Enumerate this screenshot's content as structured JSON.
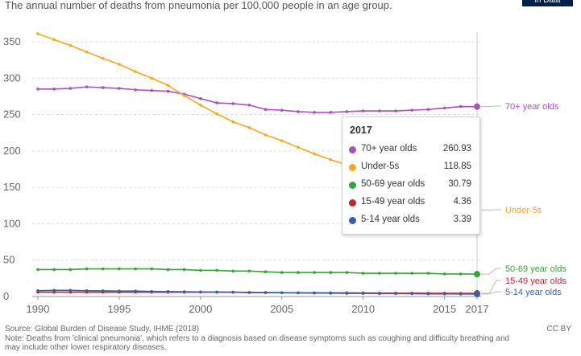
{
  "header": {
    "subtitle": "The annual number of deaths from pneumonia per 100,000 people in an age group.",
    "brand": "in Data"
  },
  "chart_data": {
    "type": "line",
    "subtitle": "The annual number of deaths from pneumonia per 100,000 people in an age group.",
    "xlim": [
      1990,
      2017
    ],
    "ylim": [
      0,
      370
    ],
    "x_ticks": [
      1990,
      1995,
      2000,
      2005,
      2010,
      2015,
      2017
    ],
    "y_ticks": [
      0,
      50,
      100,
      150,
      200,
      250,
      300,
      350
    ],
    "grid": "horizontal dashed",
    "legend": "end-of-line labels on the right",
    "x": [
      1990,
      1991,
      1992,
      1993,
      1994,
      1995,
      1996,
      1997,
      1998,
      1999,
      2000,
      2001,
      2002,
      2003,
      2004,
      2005,
      2006,
      2007,
      2008,
      2009,
      2010,
      2011,
      2012,
      2013,
      2014,
      2015,
      2016,
      2017
    ],
    "series": [
      {
        "name": "70+ year olds",
        "color": "#a652ba",
        "values": [
          285,
          285,
          286,
          288,
          287,
          286,
          284,
          283,
          282,
          278,
          272,
          266,
          265,
          263,
          257,
          256,
          254,
          253,
          253,
          254,
          255,
          255,
          255,
          256,
          257,
          259,
          261,
          260.93
        ]
      },
      {
        "name": "Under-5s",
        "color": "#f5a623",
        "values": [
          361,
          353,
          345,
          336,
          327,
          319,
          309,
          300,
          290,
          276,
          263,
          251,
          240,
          232,
          222,
          214,
          205,
          196,
          188,
          181,
          172,
          162,
          153,
          146,
          138,
          132,
          124,
          118.85
        ]
      },
      {
        "name": "50-69 year olds",
        "color": "#38a33a",
        "values": [
          37,
          37,
          37,
          38,
          38,
          38,
          38,
          38,
          37,
          37,
          36,
          36,
          35,
          35,
          34,
          33,
          33,
          33,
          33,
          33,
          32,
          32,
          32,
          32,
          32,
          31,
          31,
          30.79
        ]
      },
      {
        "name": "15-49 year olds",
        "color": "#c4242d",
        "values": [
          6,
          6,
          6,
          6,
          6,
          6,
          6,
          6,
          6,
          6,
          6,
          6,
          6,
          5.5,
          5.5,
          5.3,
          5.2,
          5,
          5,
          5,
          4.9,
          4.8,
          4.7,
          4.6,
          4.5,
          4.5,
          4.4,
          4.36
        ]
      },
      {
        "name": "5-14 year olds",
        "color": "#3b5ea8",
        "values": [
          8,
          8.5,
          8.5,
          8,
          7.8,
          7.6,
          7.5,
          7,
          6.8,
          6.5,
          6.3,
          6.1,
          5.9,
          5.7,
          5.4,
          5.2,
          5,
          4.8,
          4.6,
          4.4,
          4.3,
          4.1,
          4,
          3.9,
          3.7,
          3.6,
          3.5,
          3.39
        ]
      }
    ],
    "tooltip": {
      "year": "2017",
      "rows": [
        {
          "name": "70+ year olds",
          "value": "260.93",
          "color": "#a652ba"
        },
        {
          "name": "Under-5s",
          "value": "118.85",
          "color": "#f5a623"
        },
        {
          "name": "50-69 year olds",
          "value": "30.79",
          "color": "#38a33a"
        },
        {
          "name": "15-49 year olds",
          "value": "4.36",
          "color": "#c4242d"
        },
        {
          "name": "5-14 year olds",
          "value": "3.39",
          "color": "#3b5ea8"
        }
      ]
    }
  },
  "footer": {
    "source": "Source: Global Burden of Disease Study, IHME (2018)",
    "note": "Note: Deaths from 'clinical pneumonia', which refers to a diagnosis based on disease symptoms such as coughing and difficulty breathing and may include other lower respiratory diseases.",
    "license": "CC BY"
  }
}
